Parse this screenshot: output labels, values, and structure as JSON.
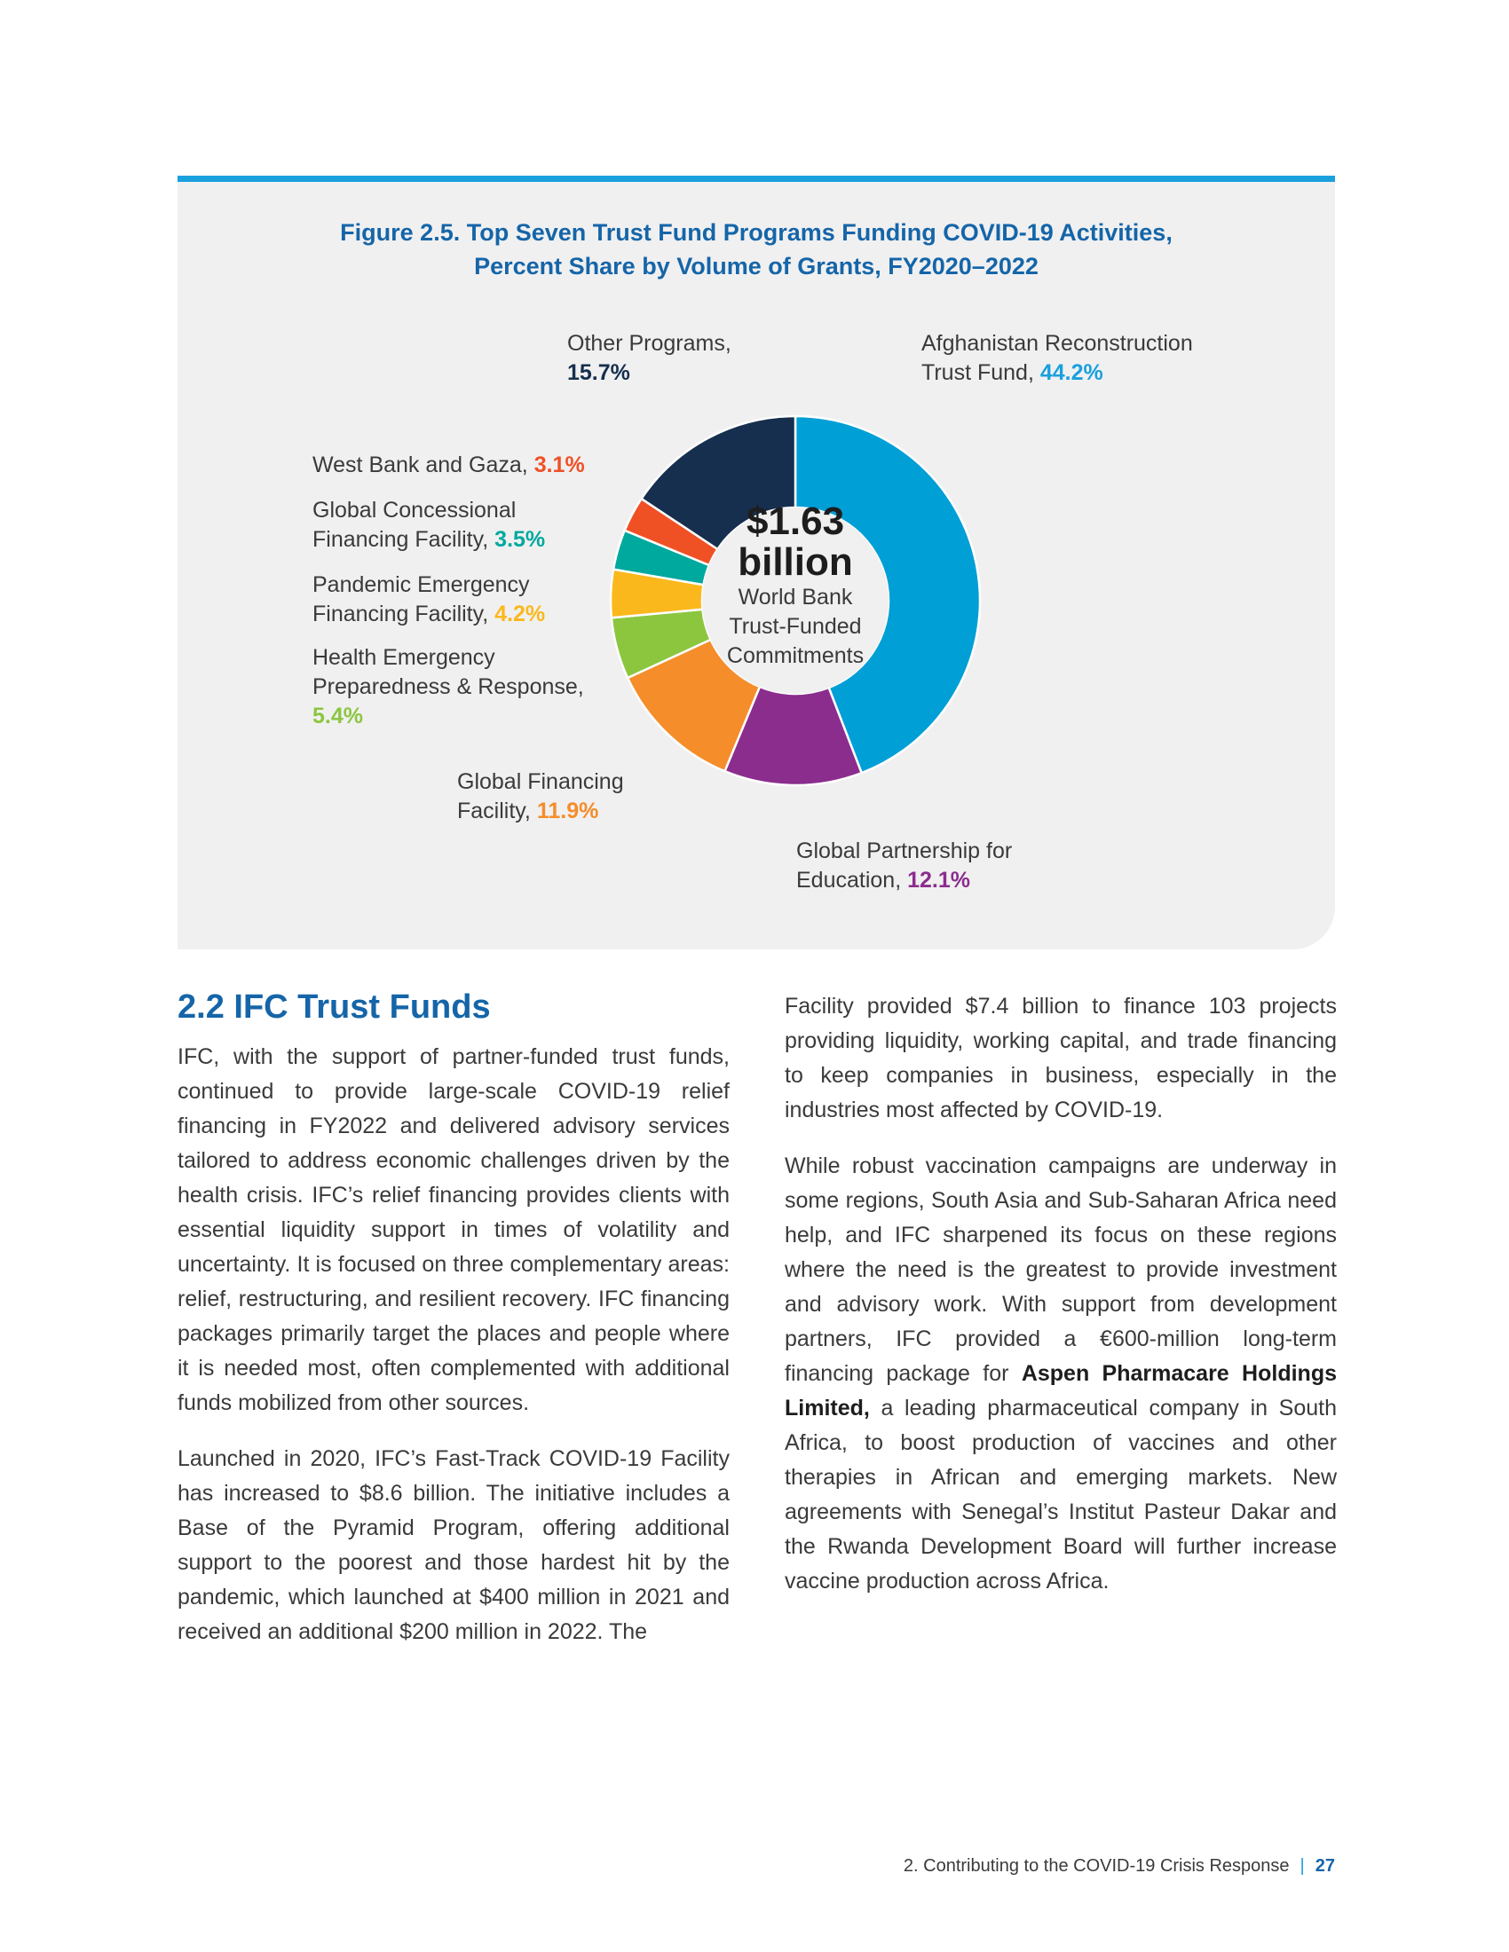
{
  "figure": {
    "title_line1": "Figure 2.5. Top Seven Trust Fund Programs Funding COVID-19 Activities,",
    "title_line2": "Percent Share by Volume of Grants, FY2020–2022",
    "center": {
      "amount": "$1.63",
      "unit": "billion",
      "line1": "World Bank",
      "line2": "Trust-Funded",
      "line3": "Commitments"
    }
  },
  "chart_data": {
    "type": "pie",
    "title": "Figure 2.5. Top Seven Trust Fund Programs Funding COVID-19 Activities, Percent Share by Volume of Grants, FY2020–2022",
    "total": "$1.63 billion",
    "slices": [
      {
        "label": "Afghanistan Reconstruction Trust Fund",
        "value": 44.2,
        "display": "44.2%",
        "color": "#009fd6"
      },
      {
        "label": "Global Partnership for Education",
        "value": 12.1,
        "display": "12.1%",
        "color": "#8b2d8d"
      },
      {
        "label": "Global Financing Facility",
        "value": 11.9,
        "display": "11.9%",
        "color": "#f58d2a"
      },
      {
        "label": "Health Emergency Preparedness & Response",
        "value": 5.4,
        "display": "5.4%",
        "color": "#8cc63f"
      },
      {
        "label": "Pandemic Emergency Financing Facility",
        "value": 4.2,
        "display": "4.2%",
        "color": "#fbb81c"
      },
      {
        "label": "Global Concessional Financing Facility",
        "value": 3.5,
        "display": "3.5%",
        "color": "#00a99d"
      },
      {
        "label": "West Bank and Gaza",
        "value": 3.1,
        "display": "3.1%",
        "color": "#ef5125"
      },
      {
        "label": "Other Programs",
        "value": 15.7,
        "display": "15.7%",
        "color": "#162f4f"
      }
    ]
  },
  "labels": {
    "afghanistan": {
      "line1": "Afghanistan Reconstruction",
      "line2": "Trust Fund,",
      "pct": "44.2%"
    },
    "gpe": {
      "line1": "Global Partnership for",
      "line2": "Education,",
      "pct": "12.1%"
    },
    "gff": {
      "line1": "Global Financing",
      "line2": "Facility,",
      "pct": "11.9%"
    },
    "hepr": {
      "line1": "Health Emergency",
      "line2": "Preparedness & Response,",
      "pct": "5.4%"
    },
    "pef": {
      "line1": "Pandemic Emergency",
      "line2": "Financing Facility,",
      "pct": "4.2%"
    },
    "gcff": {
      "line1": "Global Concessional",
      "line2": "Financing Facility,",
      "pct": "3.5%"
    },
    "wbg": {
      "line1": "West Bank and Gaza,",
      "pct": "3.1%"
    },
    "other": {
      "line1": "Other Programs,",
      "pct": "15.7%"
    }
  },
  "section": {
    "heading": "2.2 IFC Trust Funds",
    "para1": "IFC, with the support of partner-funded trust funds, continued to provide large-scale COVID-19 relief financing in FY2022 and delivered advisory services tailored to address economic challenges driven by the health crisis. IFC’s relief financing provides clients with essential liquidity support in times of volatility and uncertainty. It is focused on three complementary areas: relief, restructuring, and resilient recovery. IFC financing packages primarily target the places and people where it is needed most, often complemented with additional funds mobilized from other sources.",
    "para2": "Launched in 2020, IFC’s Fast-Track COVID-19 Facility has increased to $8.6 billion. The initiative includes a Base of the Pyramid Program, offering additional support to the poorest and those hardest hit by the pandemic, which launched at $400 million in 2021 and received an additional $200 million in 2022. The",
    "para3": "Facility provided $7.4 billion to finance 103 projects providing liquidity, working capital, and trade financing to keep companies in business, especially in the industries most affected by COVID-19.",
    "para4_a": "While robust vaccination campaigns are underway in some regions, South Asia and Sub-Saharan Africa need help, and IFC sharpened its focus on these regions where the need is the greatest to provide investment and advisory work. With support from development partners, IFC provided a €600-million long-term financing package for ",
    "para4_bold": "Aspen Pharmacare Holdings Limited,",
    "para4_b": " a leading pharmaceutical company in South Africa, to boost production of vaccines and other therapies in African and emerging markets. New agreements with Senegal’s Institut Pasteur Dakar and the Rwanda Development Board will further increase vaccine production across Africa."
  },
  "footer": {
    "chapter": "2. Contributing to the COVID-19 Crisis Response",
    "separator": "|",
    "page": "27"
  }
}
